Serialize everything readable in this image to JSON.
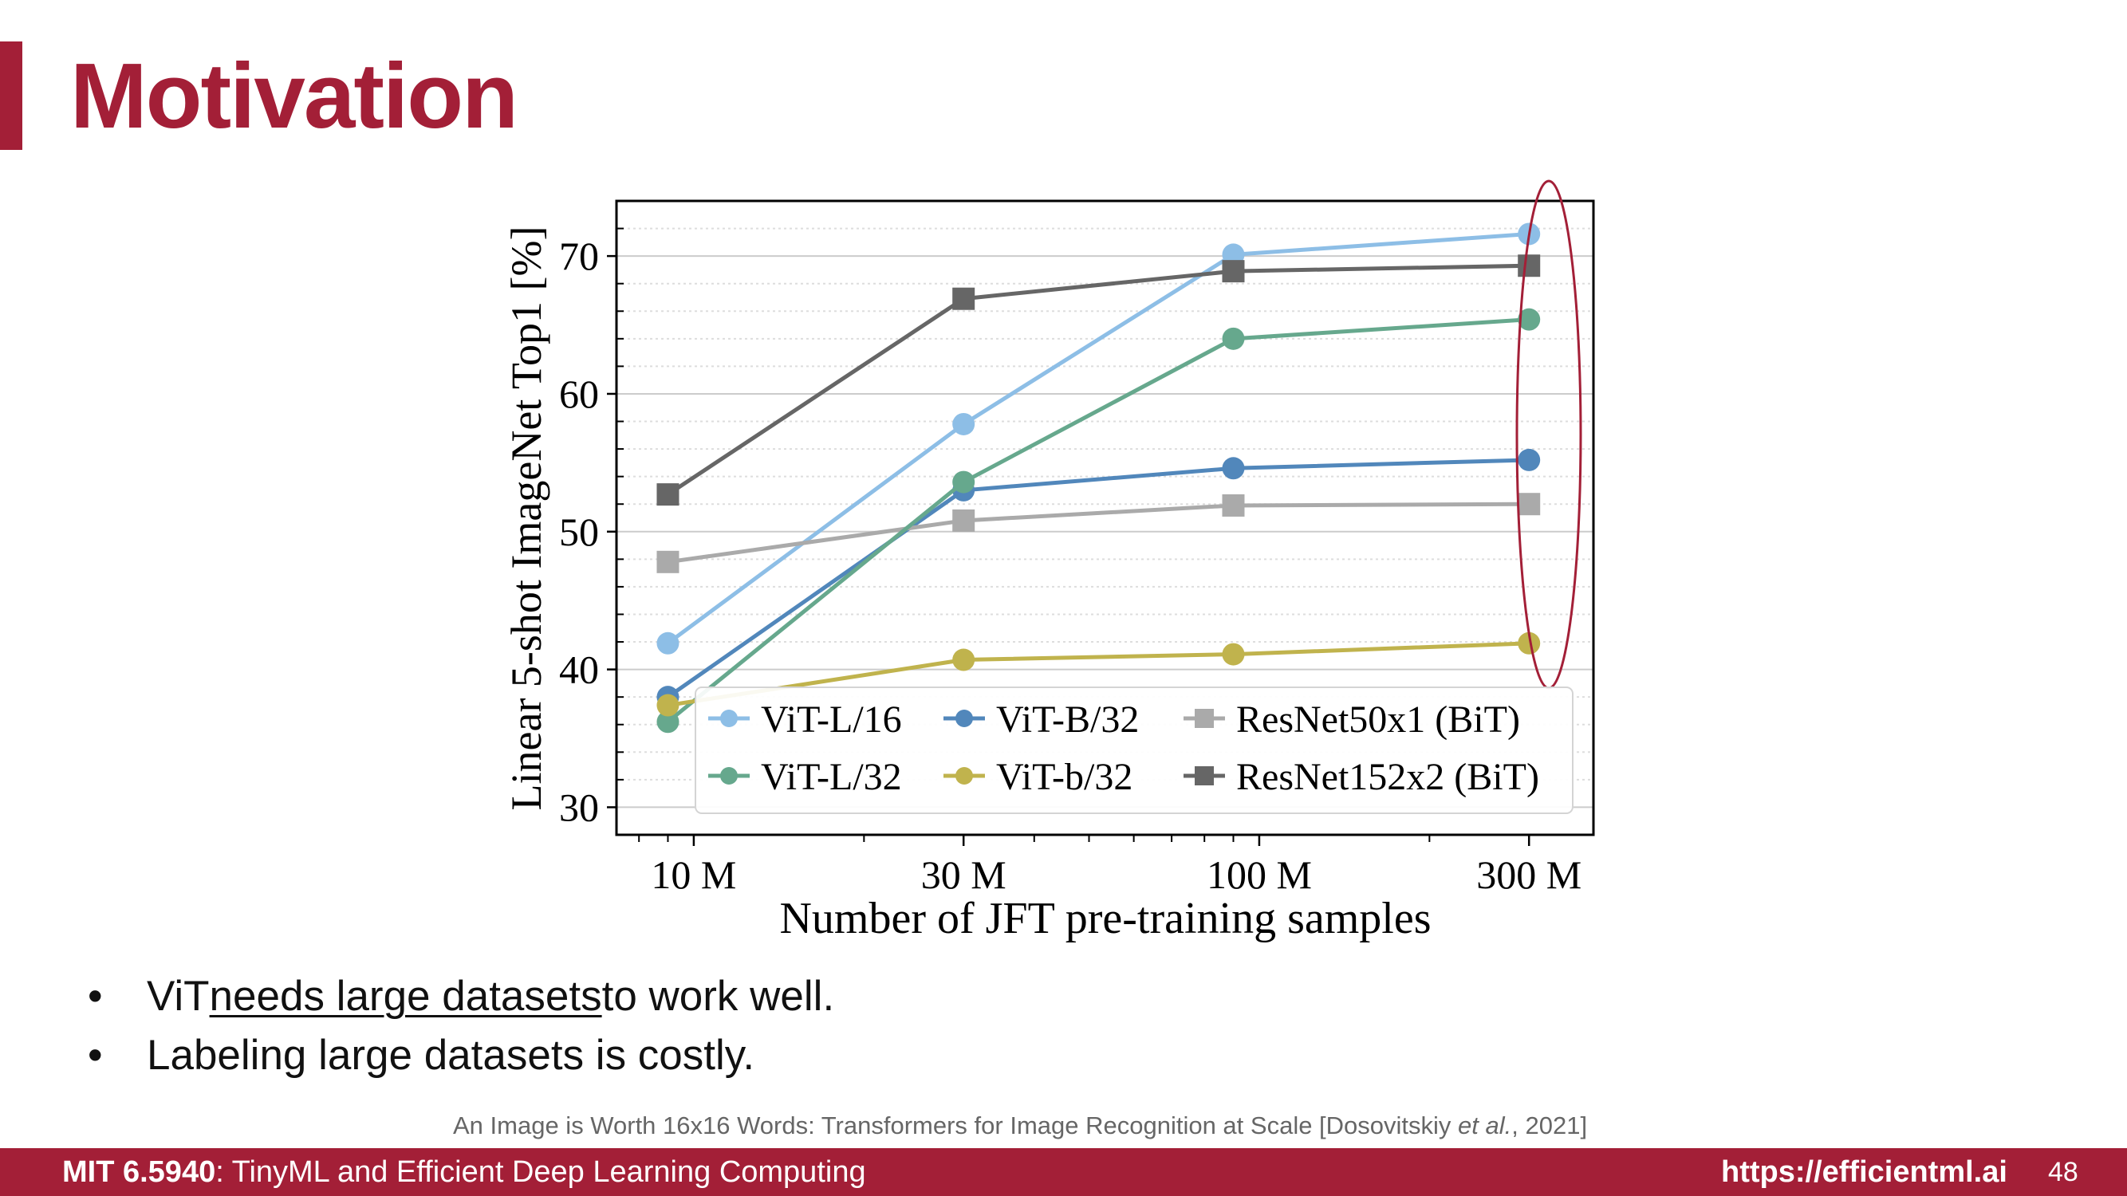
{
  "slide": {
    "title": "Motivation",
    "bullets": [
      {
        "before": "ViT ",
        "underlined": "needs large datasets",
        "after": " to work well."
      },
      {
        "before": "Labeling large datasets is costly.",
        "underlined": "",
        "after": ""
      }
    ],
    "citation": {
      "text": "An Image is Worth 16x16 Words: Transformers for Image Recognition at Scale [Dosovitskiy ",
      "italic": "et al.",
      "tail": ", 2021]"
    },
    "footer": {
      "course_code": "MIT 6.5940",
      "course_name": ": TinyML and Efficient Deep Learning Computing",
      "url": "https://efficientml.ai",
      "page": "48"
    }
  },
  "chart_data": {
    "type": "line",
    "xlabel": "Number of JFT pre-training samples",
    "ylabel": "Linear 5-shot ImageNet Top1 [%]",
    "x_scale": "log",
    "x": [
      "10 M",
      "30 M",
      "100 M",
      "300 M"
    ],
    "x_values": [
      9000000,
      30000000,
      90000000,
      300000000
    ],
    "x_ticks": [
      {
        "value": 10000000,
        "label": "10 M"
      },
      {
        "value": 30000000,
        "label": "30 M"
      },
      {
        "value": 100000000,
        "label": "100 M"
      },
      {
        "value": 300000000,
        "label": "300 M"
      }
    ],
    "ylim": [
      28,
      74
    ],
    "y_ticks": [
      30,
      40,
      50,
      60,
      70
    ],
    "grid": true,
    "legend": "lower-right",
    "series": [
      {
        "name": "ViT-L/16",
        "marker": "circle",
        "color": "#8dbee6",
        "values": [
          41.9,
          57.8,
          70.1,
          71.6
        ]
      },
      {
        "name": "ViT-B/32",
        "marker": "circle",
        "color": "#5187bb",
        "values": [
          38.0,
          53.0,
          54.6,
          55.2
        ]
      },
      {
        "name": "ResNet50x1 (BiT)",
        "marker": "square",
        "color": "#aaaaaa",
        "values": [
          47.8,
          50.8,
          51.9,
          52.0
        ]
      },
      {
        "name": "ViT-L/32",
        "marker": "circle",
        "color": "#66a88d",
        "values": [
          36.2,
          53.6,
          64.0,
          65.4
        ]
      },
      {
        "name": "ViT-b/32",
        "marker": "circle",
        "color": "#c0b34d",
        "values": [
          37.4,
          40.7,
          41.1,
          41.9
        ]
      },
      {
        "name": "ResNet152x2 (BiT)",
        "marker": "square",
        "color": "#666666",
        "values": [
          52.7,
          66.9,
          68.9,
          69.3
        ]
      }
    ],
    "annotation": {
      "type": "ellipse",
      "target_x": "300 M",
      "color": "#a31f37"
    }
  }
}
